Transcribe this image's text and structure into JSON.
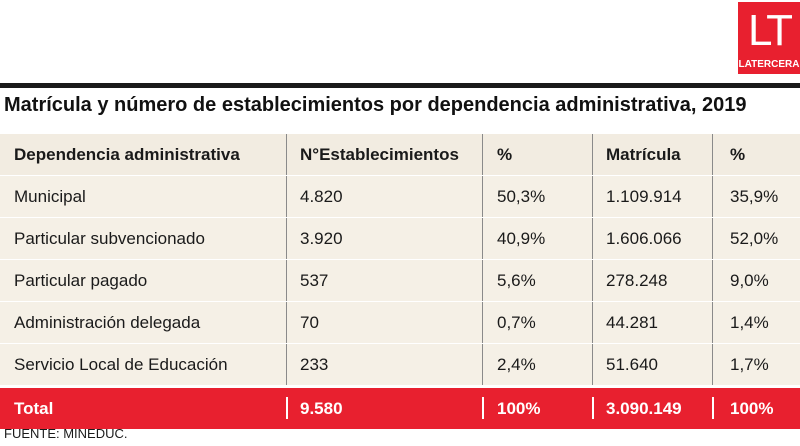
{
  "brand": {
    "logo_mark": "LT",
    "name": "LATERCERA",
    "color": "#e8202f"
  },
  "title": "Matrícula y número de establecimientos por dependencia administrativa, 2019",
  "source": "FUENTE: MINEDUC.",
  "chart_data": {
    "type": "table",
    "columns": [
      "Dependencia administrativa",
      "N°Establecimientos",
      "%",
      "Matrícula",
      "%"
    ],
    "rows": [
      [
        "Municipal",
        "4.820",
        "50,3%",
        "1.109.914",
        "35,9%"
      ],
      [
        "Particular subvencionado",
        "3.920",
        "40,9%",
        "1.606.066",
        "52,0%"
      ],
      [
        "Particular pagado",
        "537",
        "5,6%",
        "278.248",
        "9,0%"
      ],
      [
        "Administración delegada",
        "70",
        "0,7%",
        "44.281",
        "1,4%"
      ],
      [
        "Servicio Local de Educación",
        "233",
        "2,4%",
        "51.640",
        "1,7%"
      ]
    ],
    "total": [
      "Total",
      "9.580",
      "100%",
      "3.090.149",
      "100%"
    ]
  }
}
